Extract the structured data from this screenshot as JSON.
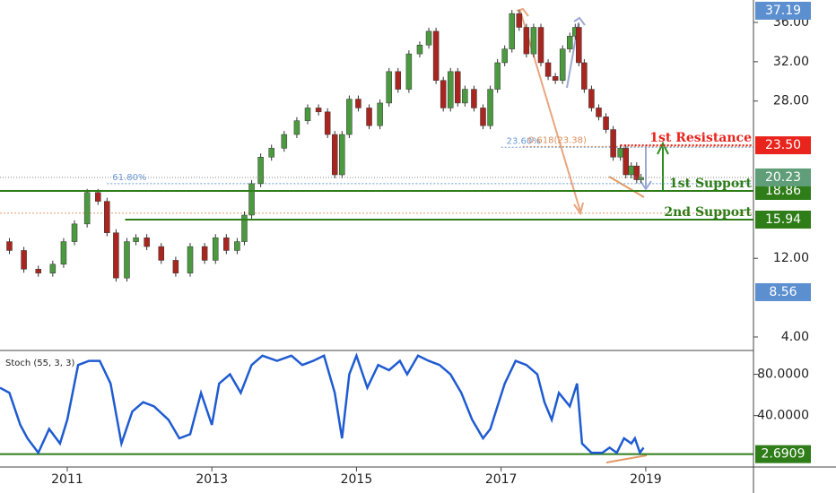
{
  "chart_data": [
    {
      "type": "candlestick",
      "x": [
        2010.1,
        2010.3,
        2010.5,
        2010.7,
        2010.9,
        2011.0,
        2011.2,
        2011.35,
        2011.5,
        2011.6,
        2011.75,
        2011.9,
        2012.0,
        2012.2,
        2012.4,
        2012.6,
        2012.8,
        2013.0,
        2013.1,
        2013.3,
        2013.4,
        2013.5,
        2013.6,
        2013.75,
        2013.9,
        2014.1,
        2014.25,
        2014.4,
        2014.55,
        2014.65,
        2014.75,
        2014.85,
        2014.95,
        2015.1,
        2015.25,
        2015.4,
        2015.5,
        2015.65,
        2015.8,
        2015.95,
        2016.05,
        2016.15,
        2016.25,
        2016.35,
        2016.45,
        2016.55,
        2016.7,
        2016.8,
        2016.9,
        2017.0,
        2017.1,
        2017.2,
        2017.3,
        2017.4,
        2017.5,
        2017.6,
        2017.7,
        2017.8,
        2017.9,
        2018.0,
        2018.05,
        2018.1,
        2018.2,
        2018.3,
        2018.4,
        2018.5,
        2018.6,
        2018.7,
        2018.75,
        2018.85,
        2018.9,
        2018.97
      ],
      "values": [
        13.7,
        12.8,
        10.9,
        10.5,
        11.4,
        13.7,
        15.5,
        18.7,
        17.8,
        14.6,
        10.0,
        13.7,
        14.1,
        13.2,
        11.8,
        10.5,
        13.2,
        11.8,
        14.1,
        12.8,
        13.7,
        16.4,
        19.6,
        22.3,
        23.2,
        24.6,
        26.0,
        27.3,
        26.9,
        24.6,
        20.5,
        24.6,
        28.2,
        27.3,
        25.5,
        27.8,
        31.0,
        29.2,
        32.8,
        33.7,
        35.1,
        30.1,
        27.3,
        31.0,
        27.8,
        29.2,
        27.3,
        25.5,
        29.2,
        31.9,
        33.3,
        36.9,
        35.5,
        32.8,
        35.5,
        31.9,
        30.5,
        30.1,
        33.3,
        34.6,
        35.5,
        31.9,
        29.2,
        27.3,
        26.4,
        25.1,
        22.3,
        23.2,
        20.5,
        21.4,
        20.0,
        20.23
      ],
      "colors": {
        "up": "#4c9a3f",
        "down": "#a8261f"
      },
      "xlim": [
        2010.07,
        2020.49
      ],
      "ylim": [
        2.72,
        38.28
      ],
      "yticks": [
        {
          "value": 36,
          "label": "36.00"
        },
        {
          "value": 32,
          "label": "32.00"
        },
        {
          "value": 28,
          "label": "28.00"
        },
        {
          "value": 12,
          "label": "12.00"
        },
        {
          "value": 4,
          "label": "4.00"
        }
      ],
      "levels": [
        {
          "name": "1st Resistance",
          "value": 23.5,
          "label": "23.50",
          "start": 2018.65,
          "color": "#e8241c",
          "dotted": true
        },
        {
          "name": "1st Support",
          "value": 18.86,
          "label": "18.86",
          "start": 2010.07,
          "color": "#2f7d19",
          "dotted": false
        },
        {
          "name": "2nd Support",
          "value": 15.94,
          "label": "15.94",
          "start": 2011.8,
          "color": "#2f7d19",
          "dotted": false
        }
      ],
      "fibs": [
        {
          "label": "61.80%",
          "value": 19.6,
          "start": 2011.55,
          "color": "#6a9ad8"
        },
        {
          "label": "23.60%",
          "value": 23.3,
          "start": 2017.0,
          "color": "#6a9ad8"
        },
        {
          "label": "0.618(23.38)",
          "value": 23.38,
          "start": 2017.3,
          "color": "#d98e5a"
        },
        {
          "value": 16.6,
          "start": 2010.07,
          "color": "#e89a6a"
        }
      ],
      "price_tags": [
        {
          "value": 37.19,
          "label": "37.19",
          "color": "#5b8fd0"
        },
        {
          "value": 20.23,
          "label": "20.23",
          "color": "#5f9e78"
        },
        {
          "value": 8.56,
          "label": "8.56",
          "color": "#5b8fd0"
        }
      ]
    },
    {
      "type": "line",
      "title": "Stoch (55, 3, 3)",
      "x": [
        2010.07,
        2010.2,
        2010.35,
        2010.45,
        2010.6,
        2010.75,
        2010.9,
        2011.0,
        2011.15,
        2011.3,
        2011.45,
        2011.6,
        2011.75,
        2011.9,
        2012.05,
        2012.2,
        2012.4,
        2012.55,
        2012.7,
        2012.85,
        2013.0,
        2013.1,
        2013.25,
        2013.4,
        2013.55,
        2013.7,
        2013.9,
        2014.1,
        2014.25,
        2014.4,
        2014.55,
        2014.7,
        2014.8,
        2014.9,
        2015.0,
        2015.15,
        2015.3,
        2015.45,
        2015.6,
        2015.7,
        2015.85,
        2016.0,
        2016.15,
        2016.3,
        2016.45,
        2016.6,
        2016.75,
        2016.85,
        2016.95,
        2017.05,
        2017.2,
        2017.35,
        2017.5,
        2017.6,
        2017.7,
        2017.8,
        2017.95,
        2018.05,
        2018.12,
        2018.25,
        2018.4,
        2018.5,
        2018.6,
        2018.7,
        2018.8,
        2018.85,
        2018.92,
        2018.97
      ],
      "values": [
        67,
        62,
        31,
        18,
        4,
        27,
        13,
        36,
        89,
        93,
        93,
        71,
        13,
        44,
        53,
        49,
        36,
        18,
        22,
        62,
        31,
        71,
        80,
        62,
        89,
        98,
        93,
        98,
        89,
        93,
        98,
        62,
        18,
        80,
        98,
        67,
        89,
        84,
        93,
        80,
        98,
        93,
        89,
        80,
        62,
        36,
        18,
        27,
        49,
        71,
        93,
        89,
        80,
        53,
        36,
        62,
        49,
        71,
        13,
        4,
        4,
        9,
        4,
        18,
        13,
        18,
        4,
        9
      ],
      "color": "#1f5bd1",
      "xlim": [
        2010.07,
        2020.49
      ],
      "ylim": [
        -8.9,
        102.2
      ],
      "yticks": [
        {
          "value": 80,
          "label": "80.0000"
        },
        {
          "value": 40,
          "label": "40.0000"
        }
      ],
      "xticks": [
        2011,
        2013,
        2015,
        2017,
        2019
      ],
      "level": {
        "value": 2.6909,
        "label": "2.6909",
        "color": "#2f7d19"
      }
    }
  ]
}
